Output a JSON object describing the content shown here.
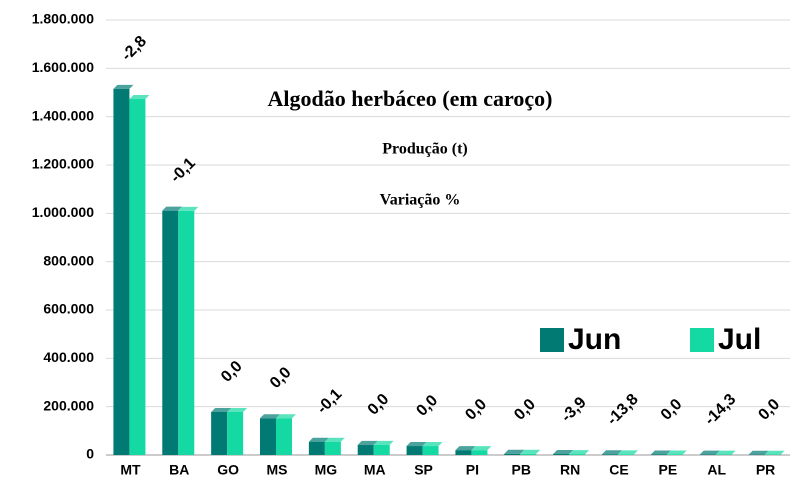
{
  "chart_data": {
    "type": "bar",
    "title": "Algodão herbáceo (em caroço)",
    "subtitle": "Produção (t)",
    "categories": [
      "MT",
      "BA",
      "GO",
      "MS",
      "MG",
      "MA",
      "SP",
      "PI",
      "PB",
      "RN",
      "CE",
      "PE",
      "AL",
      "PR"
    ],
    "series": [
      {
        "name": "Jun",
        "color": "#007a73",
        "values": [
          1515000,
          1011000,
          178000,
          152000,
          55000,
          42000,
          37000,
          20000,
          5000,
          4000,
          3000,
          2000,
          1500,
          1000
        ]
      },
      {
        "name": "Jul",
        "color": "#14d9a3",
        "values": [
          1473000,
          1010000,
          178000,
          152000,
          55000,
          42000,
          37000,
          20000,
          5000,
          3800,
          2600,
          2000,
          1300,
          1000
        ]
      }
    ],
    "variation": {
      "name": "Variação %",
      "values": [
        -2.8,
        -0.1,
        0.0,
        0.0,
        -0.1,
        0.0,
        0.0,
        0.0,
        0.0,
        -3.9,
        -13.8,
        0.0,
        -14.3,
        0.0
      ],
      "value_labels": [
        "-2,8",
        "-0,1",
        "0,0",
        "0,0",
        "-0,1",
        "0,0",
        "0,0",
        "0,0",
        "0,0",
        "-3,9",
        "-13,8",
        "0,0",
        "-14,3",
        "0,0"
      ]
    },
    "ylim": [
      0,
      1800000
    ],
    "yticks": [
      0,
      {
        "value": 200000,
        "label": "200.000"
      },
      {
        "value": 400000,
        "label": "400.000"
      },
      {
        "value": 600000,
        "label": "600.000"
      },
      {
        "value": 800000,
        "label": "800.000"
      },
      {
        "value": 1000000,
        "label": "1.000.000"
      },
      {
        "value": 1200000,
        "label": "1.200.000"
      },
      {
        "value": 1400000,
        "label": "1.400.000"
      },
      {
        "value": 1600000,
        "label": "1.600.000"
      },
      {
        "value": 1800000,
        "label": "1.800.000"
      }
    ],
    "grid": true
  }
}
